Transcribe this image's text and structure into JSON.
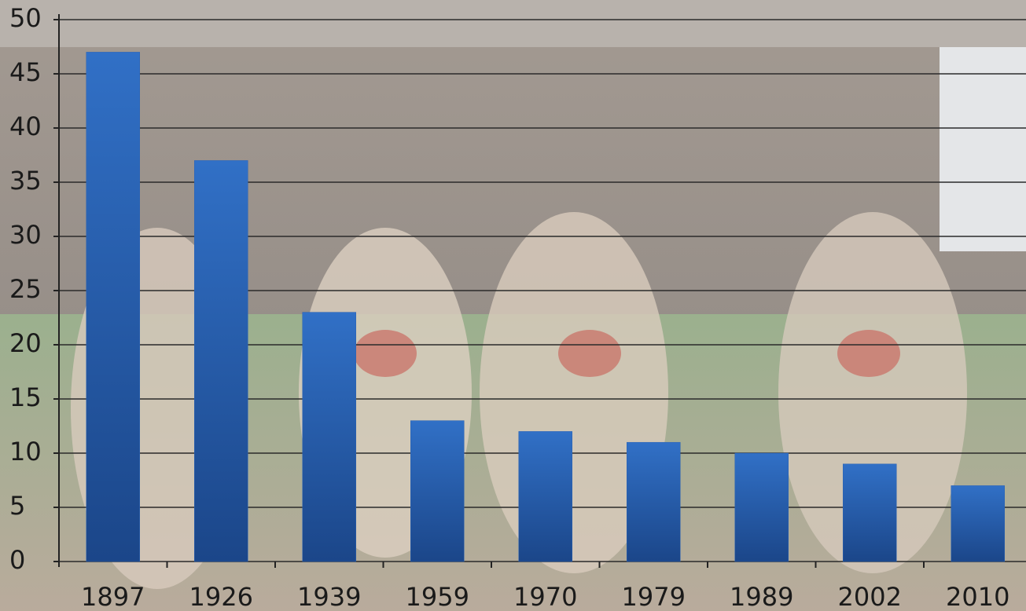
{
  "chart_data": {
    "type": "bar",
    "categories": [
      "1897",
      "1926",
      "1939",
      "1959",
      "1970",
      "1979",
      "1989",
      "2002",
      "2010"
    ],
    "values": [
      47,
      37,
      23,
      13,
      12,
      11,
      10,
      9,
      7
    ],
    "color": "#2a62b4",
    "ylim": [
      0,
      50
    ],
    "yticks": [
      0,
      5,
      10,
      15,
      20,
      25,
      30,
      35,
      40,
      45,
      50
    ],
    "grid": true
  }
}
